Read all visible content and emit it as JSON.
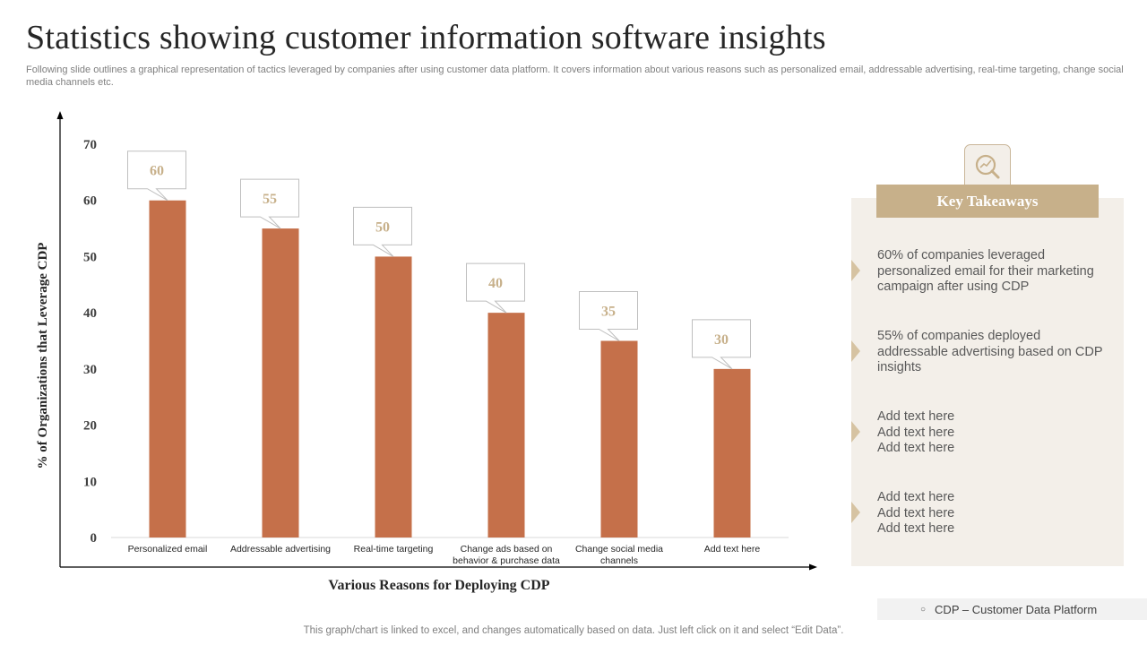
{
  "title": "Statistics showing customer information software insights",
  "subtitle": "Following slide outlines a graphical representation of tactics leveraged by companies after using customer data platform. It covers information about various reasons such as personalized email, addressable advertising, real-time targeting, change social media channels etc.",
  "chart_data": {
    "type": "bar",
    "categories": [
      "Personalized email",
      "Addressable advertising",
      "Real-time targeting",
      "Change ads based on behavior & purchase data",
      "Change social media channels",
      "Add text here"
    ],
    "category_lines": [
      [
        "Personalized email"
      ],
      [
        "Addressable advertising"
      ],
      [
        "Real-time targeting"
      ],
      [
        "Change ads based on",
        "behavior & purchase data"
      ],
      [
        "Change social media",
        "channels"
      ],
      [
        "Add text here"
      ]
    ],
    "values": [
      60,
      55,
      50,
      40,
      35,
      30
    ],
    "data_labels": [
      "60",
      "55",
      "50",
      "40",
      "35",
      "30"
    ],
    "xlabel": "Various Reasons for Deploying CDP",
    "ylabel": "% of Organizations that Leverage CDP",
    "ylim": [
      0,
      70
    ],
    "yticks": [
      0,
      10,
      20,
      30,
      40,
      50,
      60,
      70
    ],
    "bar_color": "#c5704a",
    "label_color": "#c7b08a",
    "grid": false
  },
  "key_takeaways": {
    "header": "Key Takeaways",
    "icon": "magnifier-chart-icon",
    "items": [
      "60% of companies leveraged personalized email for their marketing campaign after using CDP",
      "55% of companies deployed addressable advertising based on CDP insights",
      "Add text here\nAdd text here\nAdd text here",
      "Add text here\nAdd text here\nAdd text here"
    ]
  },
  "legend": {
    "text": "CDP – Customer Data Platform"
  },
  "footnote": "This graph/chart is linked to excel,  and changes automatically based on data. Just left click on it and select “Edit Data”.",
  "colors": {
    "accent": "#c7b08a",
    "panel": "#f3efe9",
    "bar": "#c5704a"
  }
}
